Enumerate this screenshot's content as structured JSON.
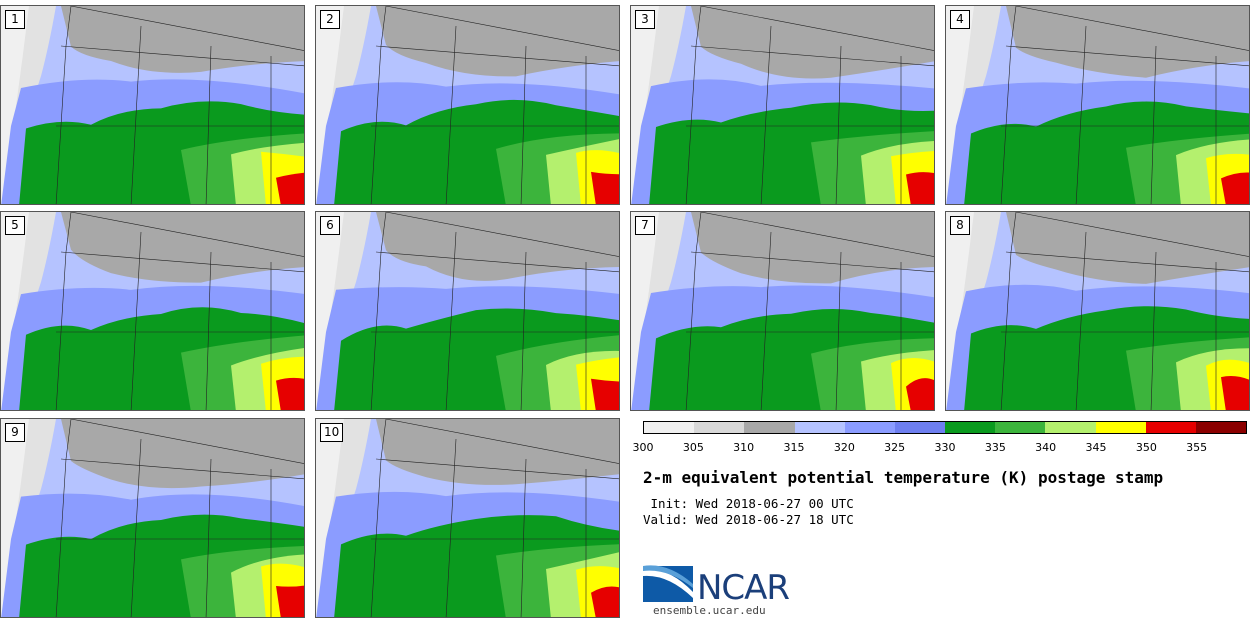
{
  "figure": {
    "title": "2-m equivalent potential temperature (K) postage stamp",
    "init": " Init: Wed 2018-06-27 00 UTC",
    "valid": "Valid: Wed 2018-06-27 18 UTC"
  },
  "stamps": [
    {
      "label": "1"
    },
    {
      "label": "2"
    },
    {
      "label": "3"
    },
    {
      "label": "4"
    },
    {
      "label": "5"
    },
    {
      "label": "6"
    },
    {
      "label": "7"
    },
    {
      "label": "8"
    },
    {
      "label": "9"
    },
    {
      "label": "10"
    }
  ],
  "colorbar": {
    "ticks": [
      "300",
      "305",
      "310",
      "315",
      "320",
      "325",
      "330",
      "335",
      "340",
      "345",
      "350",
      "355"
    ],
    "colors": [
      "#f0f0f0",
      "#d8d8d8",
      "#a8a8a8",
      "#b5c3ff",
      "#8b9cff",
      "#6e7ff0",
      "#0a9a1e",
      "#3cb43c",
      "#b4f06e",
      "#ffff00",
      "#e60000",
      "#8b0000"
    ]
  },
  "logo": {
    "name": "NCAR",
    "url": "ensemble.ucar.edu"
  }
}
